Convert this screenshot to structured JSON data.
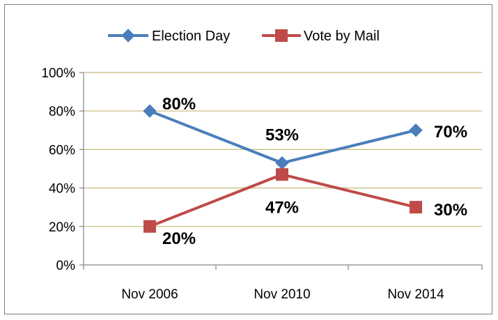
{
  "chart_data": {
    "type": "line",
    "title": "",
    "xlabel": "",
    "ylabel": "",
    "categories": [
      "Nov 2006",
      "Nov 2010",
      "Nov 2014"
    ],
    "ylim": [
      0,
      100
    ],
    "y_ticks": [
      0,
      20,
      40,
      60,
      80,
      100
    ],
    "y_tick_labels": [
      "0%",
      "20%",
      "40%",
      "60%",
      "80%",
      "100%"
    ],
    "grid": true,
    "legend_position": "top",
    "series": [
      {
        "name": "Election Day",
        "values": [
          80,
          53,
          70
        ],
        "labels": [
          "80%",
          "53%",
          "70%"
        ],
        "color": "#4a7ebb",
        "marker": "diamond"
      },
      {
        "name": "Vote by Mail",
        "values": [
          20,
          47,
          30
        ],
        "labels": [
          "20%",
          "47%",
          "30%"
        ],
        "color": "#be4b48",
        "marker": "square"
      }
    ],
    "gridline_color": "#c8b97a"
  }
}
